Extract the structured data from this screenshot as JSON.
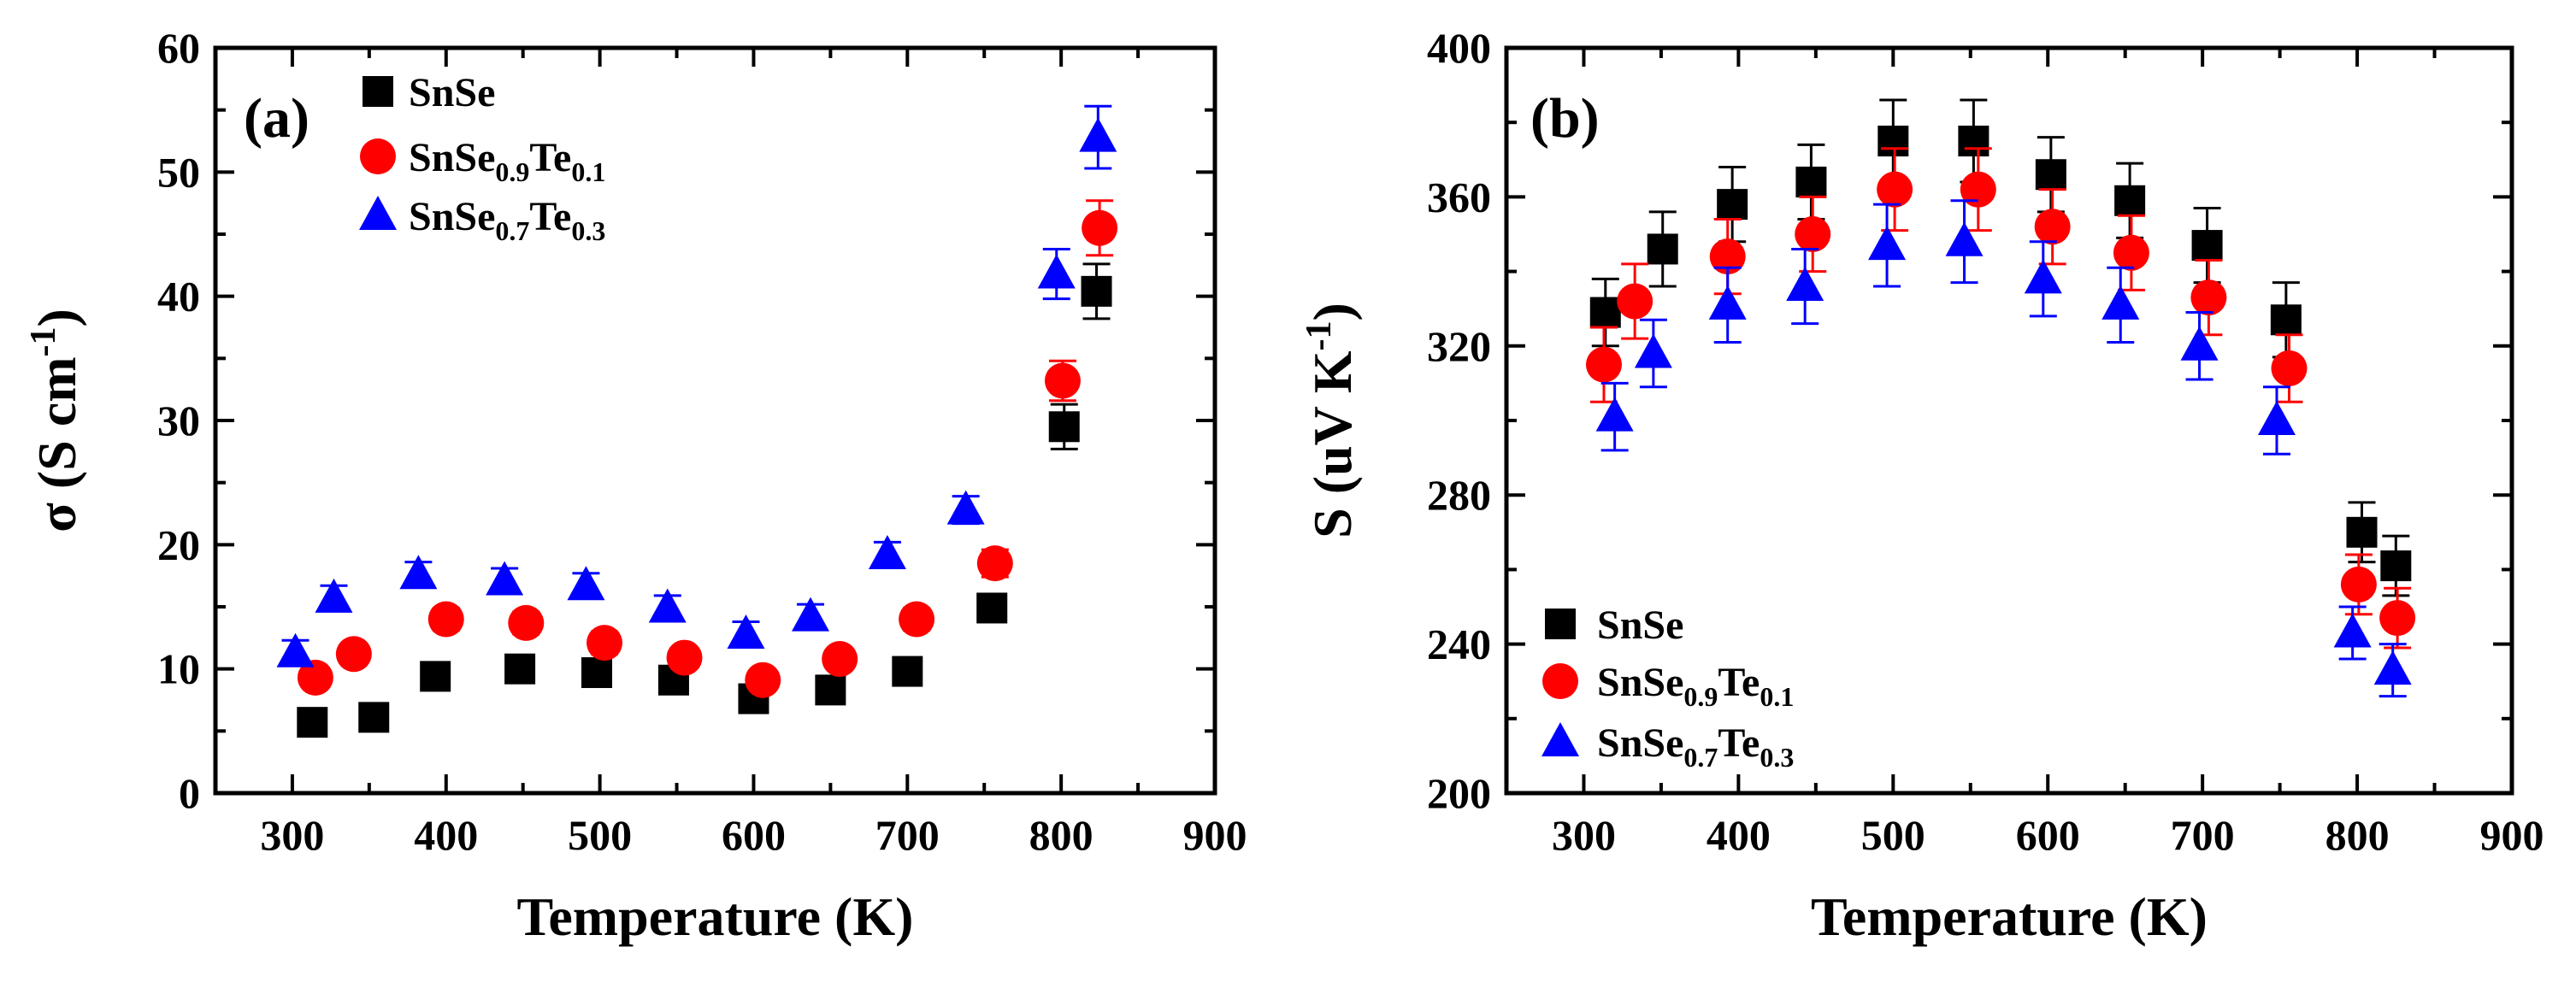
{
  "chart_data": [
    {
      "type": "scatter",
      "panel_label": "(a)",
      "xlabel": "Temperature (K)",
      "ylabel": {
        "prefix": "σ (S cm",
        "sup": "-1",
        "suffix": ")"
      },
      "xlim": [
        250,
        900
      ],
      "ylim": [
        0,
        60
      ],
      "xticks": [
        300,
        400,
        500,
        600,
        700,
        800,
        900
      ],
      "yticks": [
        0,
        10,
        20,
        30,
        40,
        50,
        60
      ],
      "legend_position": "top-left",
      "series": [
        {
          "key": "snse",
          "marker": "square",
          "color": "#000000",
          "label_parts": [
            {
              "t": "SnSe",
              "s": ""
            }
          ],
          "label_text": "SnSe",
          "x": [
            313,
            353,
            393,
            448,
            498,
            548,
            600,
            650,
            700,
            755,
            802,
            823
          ],
          "y": [
            5.7,
            6.1,
            9.4,
            10.0,
            9.7,
            9.1,
            7.6,
            8.3,
            9.8,
            14.9,
            29.5,
            40.4
          ],
          "err": [
            0.6,
            0.6,
            0.8,
            0.8,
            0.8,
            0.8,
            0.7,
            0.7,
            0.8,
            1.0,
            1.8,
            2.2
          ]
        },
        {
          "key": "snse09",
          "marker": "circle",
          "color": "#ff0000",
          "label_parts": [
            {
              "t": "SnSe",
              "s": "0.9"
            },
            {
              "t": "Te",
              "s": "0.1"
            }
          ],
          "label_text": "SnSe0.9Te0.1",
          "x": [
            315,
            340,
            400,
            452,
            503,
            555,
            606,
            656,
            706,
            757,
            801,
            825
          ],
          "y": [
            9.3,
            11.2,
            14.0,
            13.7,
            12.1,
            10.9,
            9.1,
            10.8,
            14.0,
            18.5,
            33.2,
            45.5
          ],
          "err": [
            0.8,
            0.8,
            0.9,
            0.9,
            0.9,
            0.8,
            0.8,
            0.8,
            0.9,
            1.1,
            1.6,
            2.2
          ]
        },
        {
          "key": "snse07",
          "marker": "triangle",
          "color": "#0000ff",
          "label_parts": [
            {
              "t": "SnSe",
              "s": "0.7"
            },
            {
              "t": "Te",
              "s": "0.3"
            }
          ],
          "label_text": "SnSe0.7Te0.3",
          "x": [
            302,
            327,
            382,
            438,
            491,
            544,
            595,
            637,
            687,
            738,
            797,
            824
          ],
          "y": [
            11.3,
            15.7,
            17.6,
            17.1,
            16.7,
            14.9,
            12.8,
            14.2,
            19.2,
            22.8,
            41.8,
            52.8
          ],
          "err": [
            1.0,
            1.0,
            1.0,
            1.0,
            1.0,
            1.0,
            1.0,
            1.0,
            1.0,
            1.1,
            2.0,
            2.5
          ]
        }
      ]
    },
    {
      "type": "scatter",
      "panel_label": "(b)",
      "xlabel": "Temperature (K)",
      "ylabel": {
        "prefix": "S (uV K",
        "sup": "-1",
        "suffix": ")"
      },
      "xlim": [
        250,
        900
      ],
      "ylim": [
        200,
        400
      ],
      "xticks": [
        300,
        400,
        500,
        600,
        700,
        800,
        900
      ],
      "yticks": [
        200,
        240,
        280,
        320,
        360,
        400
      ],
      "legend_position": "bottom-left",
      "series": [
        {
          "key": "snse",
          "marker": "square",
          "color": "#000000",
          "label_parts": [
            {
              "t": "SnSe",
              "s": ""
            }
          ],
          "label_text": "SnSe",
          "x": [
            314,
            351,
            396,
            447,
            500,
            552,
            602,
            653,
            703,
            754,
            803,
            825
          ],
          "y": [
            329,
            346,
            358,
            364,
            375,
            375,
            366,
            359,
            347,
            327,
            270,
            261
          ],
          "err": [
            9,
            10,
            10,
            10,
            11,
            11,
            10,
            10,
            10,
            10,
            8,
            8
          ]
        },
        {
          "key": "snse09",
          "marker": "circle",
          "color": "#ff0000",
          "label_parts": [
            {
              "t": "SnSe",
              "s": "0.9"
            },
            {
              "t": "Te",
              "s": "0.1"
            }
          ],
          "label_text": "SnSe0.9Te0.1",
          "x": [
            313,
            333,
            393,
            448,
            501,
            555,
            603,
            654,
            704,
            756,
            801,
            826
          ],
          "y": [
            315,
            332,
            344,
            350,
            362,
            362,
            352,
            345,
            333,
            314,
            256,
            247
          ],
          "err": [
            10,
            10,
            10,
            10,
            11,
            11,
            10,
            10,
            10,
            9,
            8,
            8
          ]
        },
        {
          "key": "snse07",
          "marker": "triangle",
          "color": "#0000ff",
          "label_parts": [
            {
              "t": "SnSe",
              "s": "0.7"
            },
            {
              "t": "Te",
              "s": "0.3"
            }
          ],
          "label_text": "SnSe0.7Te0.3",
          "x": [
            320,
            345,
            393,
            443,
            496,
            546,
            597,
            647,
            698,
            748,
            797,
            823
          ],
          "y": [
            301,
            318,
            331,
            336,
            347,
            348,
            338,
            331,
            320,
            300,
            243,
            233
          ],
          "err": [
            9,
            9,
            10,
            10,
            11,
            11,
            10,
            10,
            9,
            9,
            7,
            7
          ]
        }
      ]
    }
  ]
}
